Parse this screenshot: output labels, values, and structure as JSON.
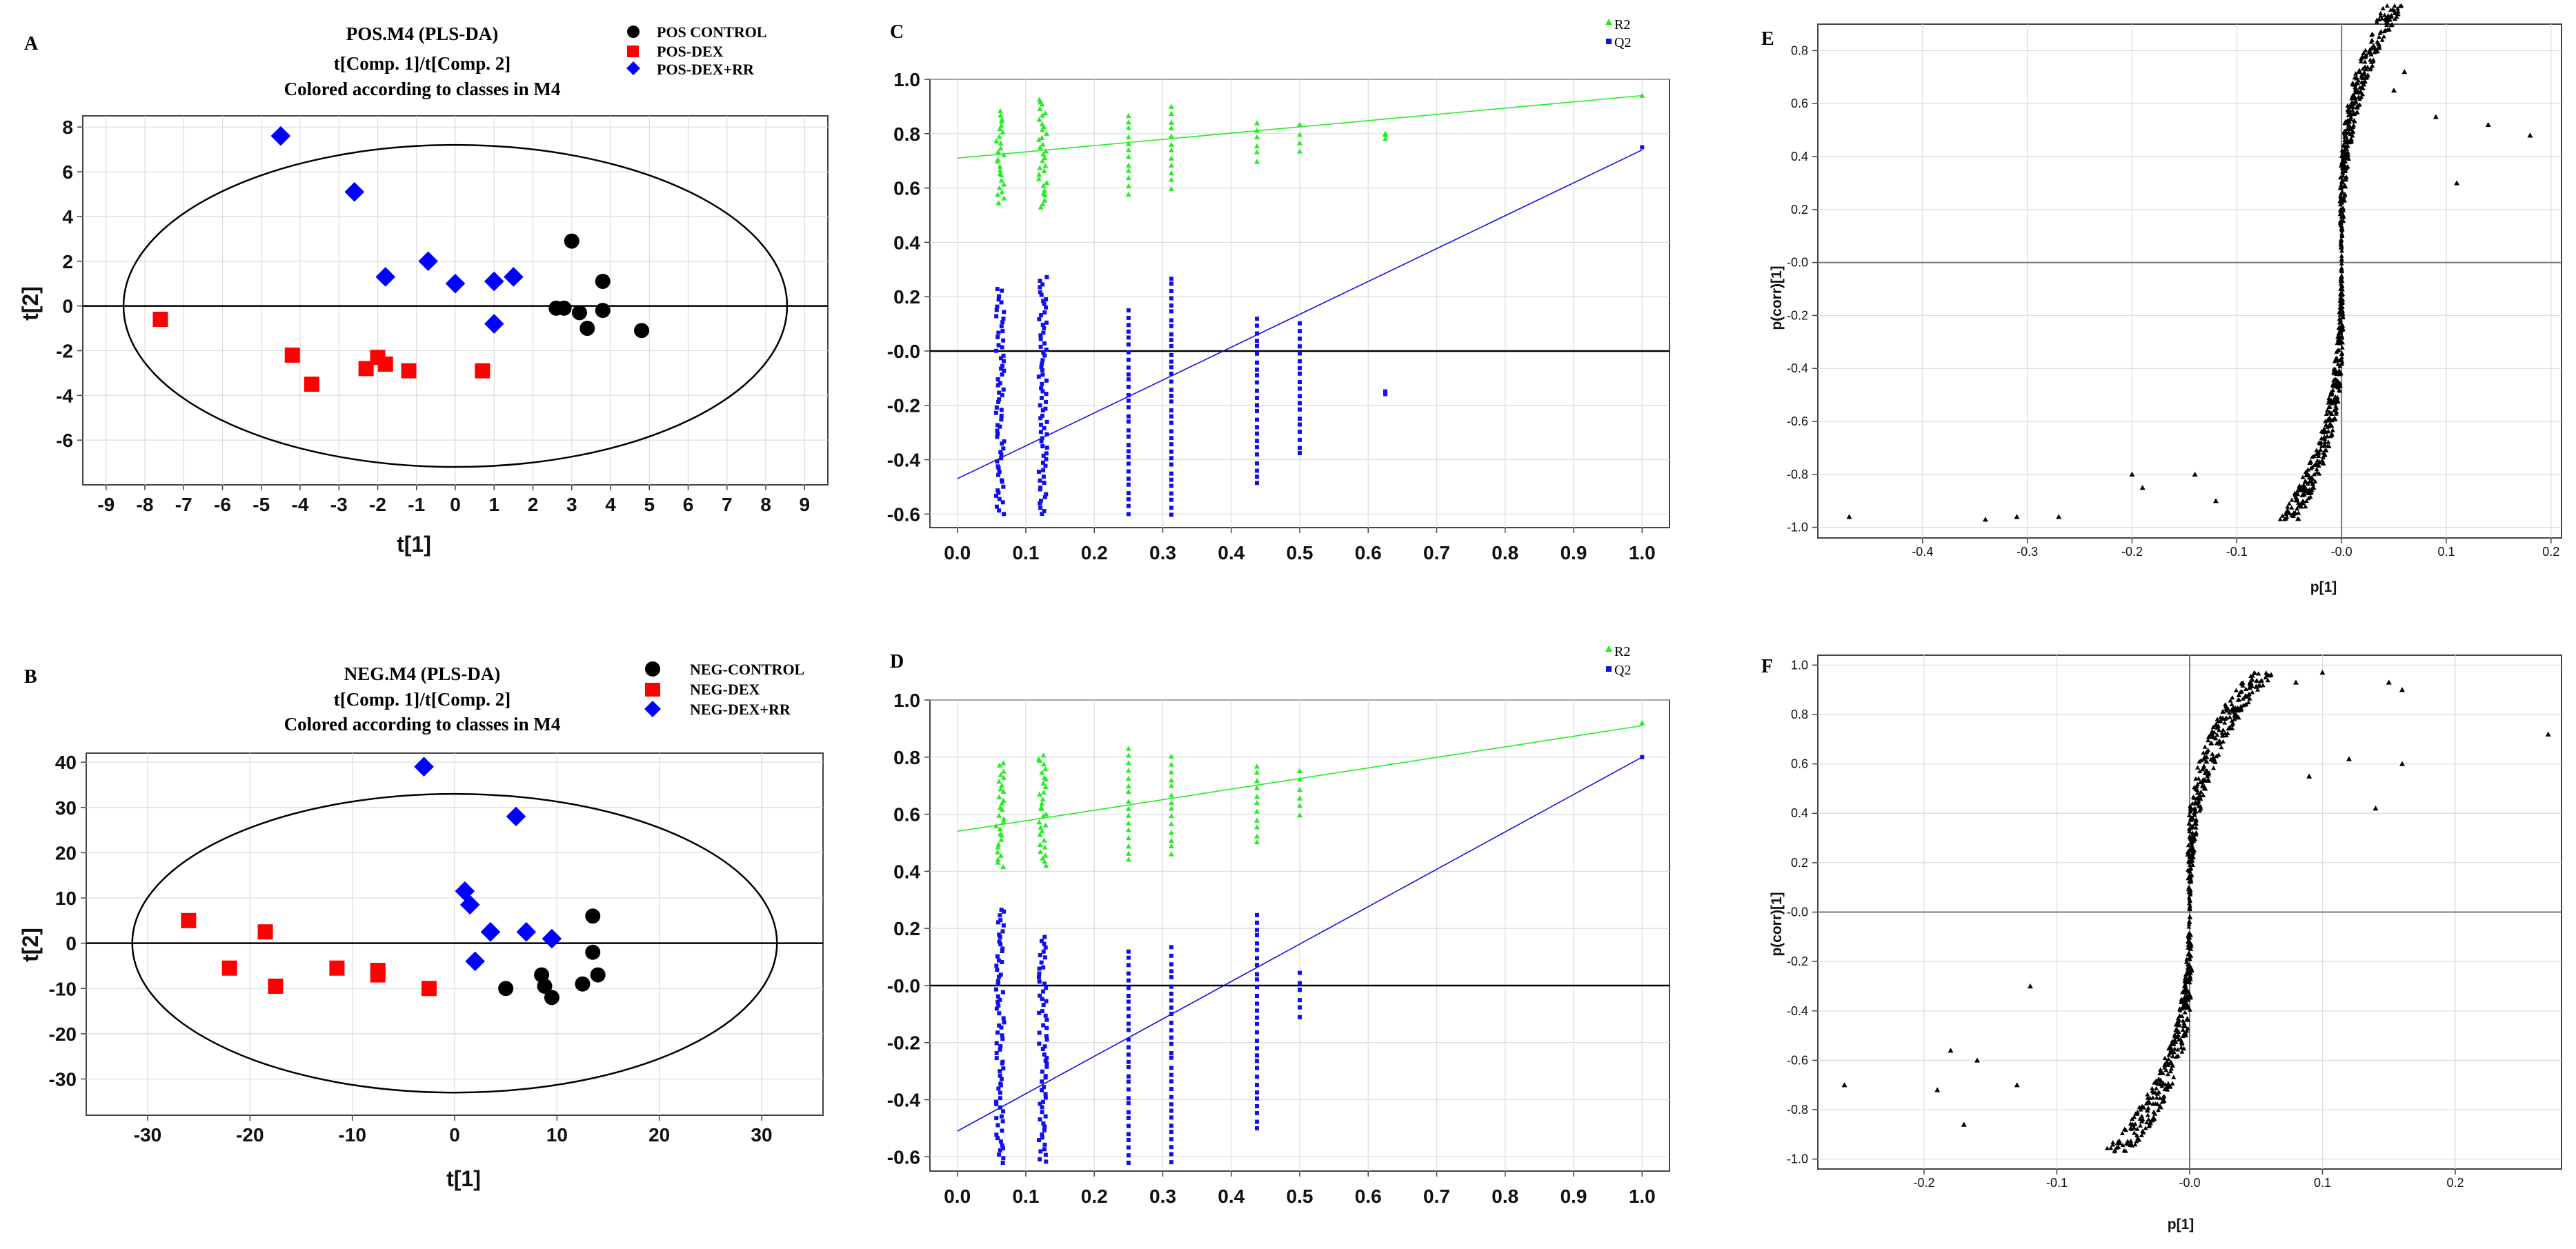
{
  "chart_data": [
    {
      "panel": "A",
      "type": "scatter",
      "title": "POS.M4 (PLS-DA)",
      "subtitle": [
        "t[Comp. 1]/t[Comp. 2]",
        "Colored according to classes in M4"
      ],
      "xlabel": "t[1]",
      "ylabel": "t[2]",
      "xlim": [
        -9.6,
        9.6
      ],
      "ylim": [
        -8,
        8.5
      ],
      "xticks": [
        "-9",
        "-8",
        "-7",
        "-6",
        "-5",
        "-4",
        "-3",
        "-2",
        "-1",
        "0",
        "1",
        "2",
        "3",
        "4",
        "5",
        "6",
        "7",
        "8",
        "9"
      ],
      "yticks": [
        "-6",
        "-4",
        "-2",
        "0",
        "2",
        "4",
        "6",
        "8"
      ],
      "ellipse": {
        "rx": 8.55,
        "ry": 7.2
      },
      "series": [
        {
          "name": "POS CONTROL",
          "color": "#000000",
          "marker": "circle",
          "points": [
            [
              3.0,
              2.9
            ],
            [
              3.8,
              1.1
            ],
            [
              2.6,
              -0.1
            ],
            [
              2.8,
              -0.1
            ],
            [
              3.2,
              -0.3
            ],
            [
              3.4,
              -1.0
            ],
            [
              3.8,
              -0.2
            ],
            [
              4.8,
              -1.1
            ]
          ]
        },
        {
          "name": "POS-DEX",
          "color": "#ff0000",
          "marker": "square",
          "points": [
            [
              -7.6,
              -0.6
            ],
            [
              -4.2,
              -2.2
            ],
            [
              -3.7,
              -3.5
            ],
            [
              -2.3,
              -2.8
            ],
            [
              -2.0,
              -2.3
            ],
            [
              -1.8,
              -2.6
            ],
            [
              -1.2,
              -2.9
            ],
            [
              0.7,
              -2.9
            ]
          ]
        },
        {
          "name": "POS-DEX+RR",
          "color": "#0000ff",
          "marker": "diamond",
          "points": [
            [
              -4.5,
              7.6
            ],
            [
              -2.6,
              5.1
            ],
            [
              -1.8,
              1.3
            ],
            [
              -0.7,
              2.0
            ],
            [
              0.0,
              1.0
            ],
            [
              1.0,
              1.1
            ],
            [
              1.5,
              1.3
            ],
            [
              1.0,
              -0.8
            ]
          ]
        }
      ]
    },
    {
      "panel": "B",
      "type": "scatter",
      "title": "NEG.M4 (PLS-DA)",
      "subtitle": [
        "t[Comp. 1]/t[Comp. 2]",
        "Colored according to classes in M4"
      ],
      "xlabel": "t[1]",
      "ylabel": "t[2]",
      "xlim": [
        -36,
        36
      ],
      "ylim": [
        -38,
        42
      ],
      "xticks": [
        "-30",
        "-20",
        "-10",
        "0",
        "10",
        "20",
        "30"
      ],
      "yticks": [
        "-30",
        "-20",
        "-10",
        "0",
        "10",
        "20",
        "30",
        "40"
      ],
      "ellipse": {
        "rx": 31.5,
        "ry": 33
      },
      "series": [
        {
          "name": "NEG-CONTROL",
          "color": "#000000",
          "marker": "circle",
          "points": [
            [
              5,
              -10
            ],
            [
              8.5,
              -7
            ],
            [
              8.8,
              -9.5
            ],
            [
              9.5,
              -12
            ],
            [
              12.5,
              -9
            ],
            [
              13.5,
              6
            ],
            [
              13.5,
              -2
            ],
            [
              14,
              -7
            ]
          ]
        },
        {
          "name": "NEG-DEX",
          "color": "#ff0000",
          "marker": "square",
          "points": [
            [
              -26,
              5
            ],
            [
              -18.5,
              2.5
            ],
            [
              -22,
              -5.5
            ],
            [
              -17.5,
              -9.5
            ],
            [
              -11.5,
              -5.5
            ],
            [
              -7.5,
              -6
            ],
            [
              -7.5,
              -7
            ],
            [
              -2.5,
              -10
            ]
          ]
        },
        {
          "name": "NEG-DEX+RR",
          "color": "#0000ff",
          "marker": "diamond",
          "points": [
            [
              -3,
              39
            ],
            [
              6,
              28
            ],
            [
              1,
              11.5
            ],
            [
              1.5,
              8.5
            ],
            [
              3.5,
              2.5
            ],
            [
              7,
              2.5
            ],
            [
              9.5,
              1
            ],
            [
              2,
              -4
            ]
          ]
        }
      ]
    },
    {
      "panel": "C",
      "type": "scatter",
      "title": "",
      "xlim": [
        -0.04,
        1.04
      ],
      "ylim": [
        -0.65,
        1.0
      ],
      "xticks": [
        "0.0",
        "0.1",
        "0.2",
        "0.3",
        "0.4",
        "0.5",
        "0.6",
        "0.7",
        "0.8",
        "0.9",
        "1.0"
      ],
      "yticks": [
        "-0.6",
        "-0.4",
        "-0.2",
        "-0.0",
        "0.2",
        "0.4",
        "0.6",
        "0.8",
        "1.0"
      ],
      "series": [
        {
          "name": "R2",
          "color": "#22ee22",
          "marker": "triangle",
          "fit": {
            "intercept": 0.71,
            "slope": 0.23
          },
          "clusters": [
            [
              0.0625,
              0.55,
              0.88
            ],
            [
              0.125,
              0.53,
              0.93
            ],
            [
              0.25,
              0.58,
              0.87
            ],
            [
              0.3125,
              0.6,
              0.9
            ],
            [
              0.4375,
              0.7,
              0.84
            ],
            [
              0.5,
              0.74,
              0.83
            ],
            [
              0.625,
              0.78,
              0.8
            ],
            [
              1.0,
              0.93,
              0.94
            ]
          ]
        },
        {
          "name": "Q2",
          "color": "#1010ee",
          "marker": "square",
          "fit": {
            "intercept": -0.47,
            "slope": 1.21
          },
          "clusters": [
            [
              0.0625,
              -0.6,
              0.23
            ],
            [
              0.125,
              -0.6,
              0.27
            ],
            [
              0.25,
              -0.6,
              0.15
            ],
            [
              0.3125,
              -0.6,
              0.27
            ],
            [
              0.4375,
              -0.49,
              0.12
            ],
            [
              0.5,
              -0.38,
              0.1
            ],
            [
              0.625,
              -0.16,
              -0.15
            ],
            [
              1.0,
              0.74,
              0.75
            ]
          ]
        }
      ]
    },
    {
      "panel": "D",
      "type": "scatter",
      "title": "",
      "xlim": [
        -0.04,
        1.04
      ],
      "ylim": [
        -0.65,
        1.0
      ],
      "xticks": [
        "0.0",
        "0.1",
        "0.2",
        "0.3",
        "0.4",
        "0.5",
        "0.6",
        "0.7",
        "0.8",
        "0.9",
        "1.0"
      ],
      "yticks": [
        "-0.6",
        "-0.4",
        "-0.2",
        "-0.0",
        "0.2",
        "0.4",
        "0.6",
        "0.8",
        "1.0"
      ],
      "series": [
        {
          "name": "R2",
          "color": "#22ee22",
          "marker": "triangle",
          "fit": {
            "intercept": 0.54,
            "slope": 0.37
          },
          "clusters": [
            [
              0.0625,
              0.42,
              0.78
            ],
            [
              0.125,
              0.42,
              0.81
            ],
            [
              0.25,
              0.44,
              0.83
            ],
            [
              0.3125,
              0.46,
              0.8
            ],
            [
              0.4375,
              0.5,
              0.77
            ],
            [
              0.5,
              0.6,
              0.75
            ],
            [
              1.0,
              0.91,
              0.92
            ]
          ]
        },
        {
          "name": "Q2",
          "color": "#1010ee",
          "marker": "square",
          "fit": {
            "intercept": -0.51,
            "slope": 1.31
          },
          "clusters": [
            [
              0.0625,
              -0.62,
              0.27
            ],
            [
              0.125,
              -0.62,
              0.17
            ],
            [
              0.25,
              -0.62,
              0.12
            ],
            [
              0.3125,
              -0.62,
              0.13
            ],
            [
              0.4375,
              -0.5,
              0.25
            ],
            [
              0.5,
              -0.11,
              0.04
            ],
            [
              1.0,
              0.79,
              0.8
            ]
          ]
        }
      ]
    },
    {
      "panel": "E",
      "type": "scatter",
      "xlabel": "p[1]",
      "ylabel": "p(corr)[1]",
      "xlim": [
        -0.5,
        0.21
      ],
      "ylim": [
        -1.04,
        0.9
      ],
      "xticks": [
        "-0.4",
        "-0.3",
        "-0.2",
        "-0.1",
        "-0.0",
        "0.1",
        "0.2"
      ],
      "yticks": [
        "-1.0",
        "-0.8",
        "-0.6",
        "-0.4",
        "-0.2",
        "-0.0",
        "0.2",
        "0.4",
        "0.6",
        "0.8"
      ],
      "marker": "triangle",
      "color": "#000000",
      "outliers": [
        [
          -0.47,
          -0.96
        ],
        [
          -0.34,
          -0.97
        ],
        [
          -0.31,
          -0.96
        ],
        [
          -0.27,
          -0.96
        ],
        [
          -0.2,
          -0.8
        ],
        [
          -0.19,
          -0.85
        ],
        [
          -0.14,
          -0.8
        ],
        [
          -0.12,
          -0.9
        ],
        [
          0.09,
          0.55
        ],
        [
          0.14,
          0.52
        ],
        [
          0.18,
          0.48
        ],
        [
          0.11,
          0.3
        ],
        [
          0.06,
          0.72
        ],
        [
          0.05,
          0.65
        ]
      ]
    },
    {
      "panel": "F",
      "type": "scatter",
      "xlabel": "p[1]",
      "ylabel": "p(corr)[1]",
      "xlim": [
        -0.28,
        0.28
      ],
      "ylim": [
        -1.04,
        1.04
      ],
      "xticks": [
        "-0.2",
        "-0.1",
        "-0.0",
        "0.1",
        "0.2"
      ],
      "yticks": [
        "-1.0",
        "-0.8",
        "-0.6",
        "-0.4",
        "-0.2",
        "-0.0",
        "0.2",
        "0.4",
        "0.6",
        "0.8",
        "1.0"
      ],
      "marker": "triangle",
      "color": "#000000",
      "outliers": [
        [
          -0.26,
          -0.7
        ],
        [
          -0.19,
          -0.72
        ],
        [
          -0.18,
          -0.56
        ],
        [
          -0.17,
          -0.86
        ],
        [
          -0.13,
          -0.7
        ],
        [
          -0.12,
          -0.3
        ],
        [
          -0.16,
          -0.6
        ],
        [
          0.27,
          0.72
        ],
        [
          0.15,
          0.93
        ],
        [
          0.16,
          0.9
        ],
        [
          0.16,
          0.6
        ],
        [
          0.14,
          0.42
        ],
        [
          0.12,
          0.62
        ],
        [
          0.1,
          0.97
        ],
        [
          0.09,
          0.55
        ],
        [
          0.08,
          0.93
        ]
      ]
    }
  ]
}
